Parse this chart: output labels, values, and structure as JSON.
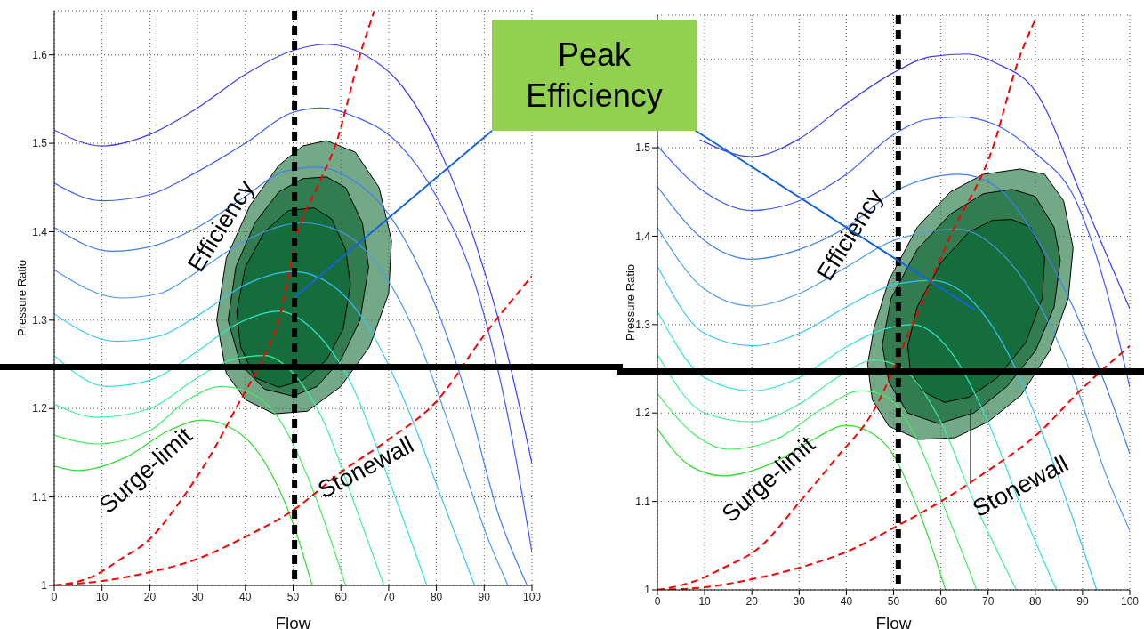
{
  "chart_data": [
    {
      "type": "line",
      "xlabel": "Flow",
      "ylabel": "Pressure Ratio",
      "xlim": [
        0,
        100
      ],
      "ylim": [
        1,
        1.65
      ],
      "xticks": [
        0,
        10,
        20,
        30,
        40,
        50,
        60,
        70,
        80,
        90,
        100
      ],
      "yticks": [
        1,
        1.1,
        1.2,
        1.3,
        1.4,
        1.5,
        1.6
      ],
      "grid": true,
      "series": [
        {
          "color": "#3b3bff",
          "x": [
            0,
            10,
            20,
            30,
            40,
            50,
            57,
            65,
            72,
            80,
            88,
            94,
            100
          ],
          "values": [
            1.515,
            1.497,
            1.51,
            1.54,
            1.578,
            1.605,
            1.612,
            1.6,
            1.57,
            1.5,
            1.39,
            1.28,
            1.138
          ]
        },
        {
          "color": "#3d5cff",
          "x": [
            0,
            10,
            20,
            30,
            40,
            50,
            56,
            63,
            72,
            80,
            88.7,
            95,
            100
          ],
          "values": [
            1.455,
            1.435,
            1.442,
            1.468,
            1.5,
            1.535,
            1.54,
            1.53,
            1.5,
            1.44,
            1.33,
            1.19,
            1.037
          ]
        },
        {
          "color": "#3f7df5",
          "x": [
            0,
            12,
            20,
            30,
            40,
            48,
            55,
            62,
            70,
            78,
            86,
            93,
            99
          ],
          "values": [
            1.405,
            1.378,
            1.383,
            1.405,
            1.44,
            1.468,
            1.473,
            1.46,
            1.42,
            1.34,
            1.22,
            1.08,
            1.0
          ]
        },
        {
          "color": "#4a9bf0",
          "x": [
            0,
            14,
            22,
            30,
            40,
            52,
            60,
            68,
            76,
            84,
            91,
            95
          ],
          "values": [
            1.357,
            1.325,
            1.33,
            1.355,
            1.39,
            1.41,
            1.4,
            1.36,
            1.28,
            1.16,
            1.05,
            1.0
          ]
        },
        {
          "color": "#33c4ff",
          "x": [
            0,
            13,
            22,
            30,
            40,
            50,
            58,
            66,
            74,
            81,
            88
          ],
          "values": [
            1.307,
            1.276,
            1.282,
            1.305,
            1.34,
            1.355,
            1.34,
            1.29,
            1.2,
            1.1,
            1.0
          ]
        },
        {
          "color": "#2ee8d0",
          "x": [
            0,
            11,
            20,
            30,
            38,
            47,
            54,
            62,
            70,
            78
          ],
          "values": [
            1.26,
            1.225,
            1.232,
            1.265,
            1.295,
            1.31,
            1.29,
            1.23,
            1.12,
            1.0
          ]
        },
        {
          "color": "#3ef09a",
          "x": [
            0,
            9,
            20,
            30,
            37,
            44,
            50,
            56,
            63,
            69
          ],
          "values": [
            1.205,
            1.19,
            1.2,
            1.235,
            1.255,
            1.26,
            1.24,
            1.19,
            1.09,
            1.0
          ]
        },
        {
          "color": "#40ee60",
          "x": [
            0,
            9,
            20,
            28,
            35,
            42,
            48,
            54,
            61
          ],
          "values": [
            1.17,
            1.16,
            1.175,
            1.21,
            1.225,
            1.215,
            1.18,
            1.11,
            1.0
          ]
        },
        {
          "color": "#33dd33",
          "x": [
            0,
            5,
            15,
            24,
            31,
            38,
            44,
            50,
            54
          ],
          "values": [
            1.135,
            1.13,
            1.145,
            1.175,
            1.187,
            1.175,
            1.14,
            1.07,
            1.0
          ]
        },
        {
          "color": "#ff0000",
          "line_style": "dashed",
          "x": [
            0,
            8,
            14,
            19.5,
            27,
            33,
            38,
            43,
            47,
            51,
            55,
            59,
            64,
            67
          ],
          "values": [
            1.0,
            1.01,
            1.03,
            1.05,
            1.1,
            1.15,
            1.2,
            1.25,
            1.3,
            1.4,
            1.45,
            1.5,
            1.6,
            1.65
          ]
        },
        {
          "color": "#ff0000",
          "line_style": "dashed",
          "x": [
            0,
            10,
            20,
            30,
            40,
            50,
            60,
            70,
            80,
            90,
            100
          ],
          "values": [
            1.0,
            1.005,
            1.015,
            1.03,
            1.055,
            1.085,
            1.128,
            1.165,
            1.208,
            1.283,
            1.35
          ]
        },
        {
          "type": "area",
          "color": "#68a27e",
          "x": [
            57,
            63,
            68,
            70.6,
            70,
            66,
            60,
            53,
            46,
            40,
            36,
            34,
            36,
            41,
            47,
            52
          ],
          "values": [
            1.503,
            1.49,
            1.45,
            1.39,
            1.33,
            1.27,
            1.225,
            1.197,
            1.194,
            1.21,
            1.24,
            1.3,
            1.37,
            1.43,
            1.475,
            1.497
          ]
        },
        {
          "type": "area",
          "color": "#2b7a4b",
          "x": [
            57,
            61,
            64.5,
            65.8,
            64,
            60,
            55,
            50,
            44,
            39,
            36.4,
            38,
            42,
            47,
            52
          ],
          "values": [
            1.462,
            1.45,
            1.41,
            1.36,
            1.3,
            1.255,
            1.225,
            1.214,
            1.222,
            1.25,
            1.3,
            1.36,
            1.41,
            1.445,
            1.46
          ]
        },
        {
          "type": "area",
          "color": "#116b38",
          "x": [
            54.4,
            58,
            61,
            62,
            60.5,
            57,
            52,
            47,
            42,
            39,
            38.2,
            40,
            44,
            49
          ],
          "values": [
            1.427,
            1.415,
            1.38,
            1.34,
            1.29,
            1.255,
            1.232,
            1.224,
            1.235,
            1.27,
            1.31,
            1.36,
            1.4,
            1.424
          ]
        }
      ],
      "ref_lines": [
        {
          "axis": "x",
          "value": 50.3,
          "color": "#000000",
          "line_style": "dashed"
        },
        {
          "axis": "y",
          "value": 1.247,
          "color": "#000000",
          "line_style": "solid"
        }
      ],
      "annotations": [
        "Efficiency",
        "Surge-limit",
        "Stonewall",
        "Peak Efficiency"
      ]
    },
    {
      "type": "line",
      "xlabel": "Flow",
      "ylabel": "Pressure Ratio",
      "xlim": [
        0,
        100
      ],
      "ylim": [
        1,
        1.65
      ],
      "xticks": [
        0,
        10,
        20,
        30,
        40,
        50,
        60,
        70,
        80,
        90,
        100
      ],
      "yticks": [
        1,
        1.1,
        1.2,
        1.3,
        1.4,
        1.5,
        {
          "value": 1.6,
          "label": null
        }
      ],
      "grid": true,
      "series": [
        {
          "color": "#3b3bff",
          "x": [
            9,
            20,
            30,
            40,
            50,
            58,
            65.6,
            72,
            80,
            90,
            95,
            100
          ],
          "values": [
            1.509,
            1.49,
            1.51,
            1.55,
            1.585,
            1.603,
            1.606,
            1.595,
            1.564,
            1.443,
            1.38,
            1.318
          ]
        },
        {
          "color": "#3d5cff",
          "x": [
            0,
            10,
            20,
            30,
            40,
            50,
            57,
            64,
            72,
            80,
            88.7,
            95,
            100
          ],
          "values": [
            1.502,
            1.45,
            1.429,
            1.44,
            1.47,
            1.515,
            1.532,
            1.535,
            1.525,
            1.494,
            1.439,
            1.34,
            1.229
          ]
        },
        {
          "color": "#3f7df5",
          "x": [
            0,
            10,
            20,
            30,
            40,
            50,
            57,
            64,
            72,
            80,
            88,
            95,
            100
          ],
          "values": [
            1.456,
            1.395,
            1.374,
            1.385,
            1.41,
            1.45,
            1.465,
            1.47,
            1.455,
            1.4,
            1.32,
            1.23,
            1.154
          ]
        },
        {
          "color": "#4a9bf0",
          "x": [
            0,
            10,
            20,
            30,
            40,
            50,
            63.6,
            72,
            80,
            88,
            95,
            100
          ],
          "values": [
            1.41,
            1.34,
            1.321,
            1.335,
            1.365,
            1.395,
            1.408,
            1.385,
            1.33,
            1.24,
            1.13,
            1.067
          ]
        },
        {
          "color": "#33c4ff",
          "x": [
            0,
            10,
            20,
            30,
            40,
            50,
            58,
            66,
            74,
            82,
            88,
            93
          ],
          "values": [
            1.366,
            1.29,
            1.276,
            1.29,
            1.32,
            1.345,
            1.35,
            1.33,
            1.27,
            1.17,
            1.08,
            1.0
          ]
        },
        {
          "color": "#2ee8d0",
          "x": [
            0,
            10,
            20,
            30,
            40,
            48,
            54,
            62,
            70,
            78,
            84.5
          ],
          "values": [
            1.315,
            1.24,
            1.225,
            1.24,
            1.275,
            1.295,
            1.3,
            1.27,
            1.19,
            1.08,
            1.0
          ]
        },
        {
          "color": "#3ef09a",
          "x": [
            0,
            10,
            20,
            30,
            38,
            46,
            52,
            60,
            67,
            76
          ],
          "values": [
            1.266,
            1.2,
            1.19,
            1.21,
            1.24,
            1.26,
            1.25,
            1.19,
            1.1,
            1.0
          ]
        },
        {
          "color": "#40ee60",
          "x": [
            0,
            8,
            15,
            25,
            35,
            43,
            48,
            54,
            61,
            67.6
          ],
          "values": [
            1.222,
            1.175,
            1.159,
            1.17,
            1.205,
            1.225,
            1.22,
            1.18,
            1.09,
            1.0
          ]
        },
        {
          "color": "#33dd33",
          "x": [
            0,
            7,
            14,
            25,
            33,
            40,
            46,
            49,
            56,
            61
          ],
          "values": [
            1.182,
            1.14,
            1.129,
            1.145,
            1.17,
            1.186,
            1.175,
            1.16,
            1.08,
            1.0
          ]
        },
        {
          "color": "#ff0000",
          "line_style": "dashed",
          "x": [
            0,
            8,
            14,
            21.4,
            30.2,
            38,
            45.5,
            54,
            62,
            71,
            76.5,
            80
          ],
          "values": [
            1.0,
            1.01,
            1.025,
            1.047,
            1.1,
            1.15,
            1.2,
            1.3,
            1.4,
            1.5,
            1.6,
            1.645
          ]
        },
        {
          "color": "#ff0000",
          "line_style": "dashed",
          "x": [
            0,
            10,
            20,
            30,
            40,
            51,
            60,
            70,
            80,
            90,
            100
          ],
          "values": [
            1.0,
            1.003,
            1.012,
            1.025,
            1.043,
            1.073,
            1.1,
            1.135,
            1.174,
            1.228,
            1.276
          ]
        },
        {
          "color": "#000000",
          "x": [
            66.3,
            66.3
          ],
          "values": [
            1.204,
            1.12
          ]
        },
        {
          "type": "area",
          "color": "#68a27e",
          "x": [
            76.8,
            82,
            86,
            88,
            87,
            83,
            77,
            70,
            63,
            55.4,
            49,
            45.5,
            44.5,
            45.9,
            49,
            55,
            62,
            69
          ],
          "values": [
            1.476,
            1.47,
            1.44,
            1.387,
            1.33,
            1.27,
            1.22,
            1.19,
            1.172,
            1.17,
            1.185,
            1.215,
            1.255,
            1.297,
            1.35,
            1.41,
            1.45,
            1.47
          ]
        },
        {
          "type": "area",
          "color": "#2b7a4b",
          "x": [
            75.1,
            80,
            84,
            85.3,
            84,
            80,
            74,
            67,
            59.5,
            53,
            49,
            47.6,
            49.5,
            55,
            62,
            69
          ],
          "values": [
            1.453,
            1.445,
            1.41,
            1.373,
            1.32,
            1.27,
            1.23,
            1.2,
            1.188,
            1.2,
            1.235,
            1.277,
            1.33,
            1.385,
            1.425,
            1.448
          ]
        },
        {
          "type": "area",
          "color": "#116b38",
          "x": [
            75,
            79,
            82,
            81.5,
            78,
            72,
            66,
            60.8,
            56,
            53.5,
            53,
            55,
            60,
            66,
            71
          ],
          "values": [
            1.419,
            1.41,
            1.376,
            1.33,
            1.28,
            1.24,
            1.218,
            1.212,
            1.225,
            1.25,
            1.276,
            1.32,
            1.37,
            1.405,
            1.418
          ]
        }
      ],
      "ref_lines": [
        {
          "axis": "x",
          "value": 51,
          "color": "#000000",
          "line_style": "dashed"
        },
        {
          "axis": "y",
          "value": 1.247,
          "color": "#000000",
          "line_style": "solid"
        }
      ],
      "annotations": [
        "Efficiency",
        "Surge-limit",
        "Stonewall"
      ]
    }
  ]
}
